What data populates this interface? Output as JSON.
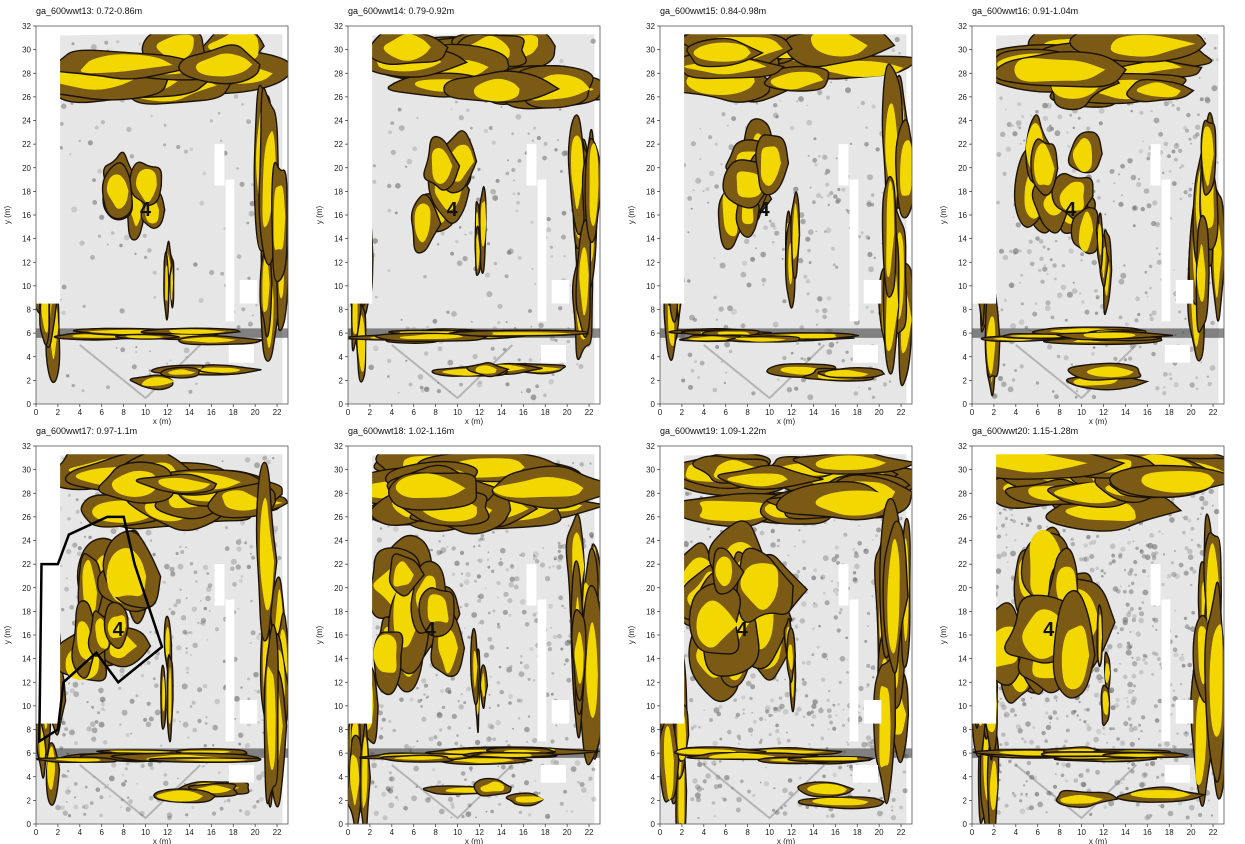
{
  "chart_data": [
    {
      "type": "heatmap",
      "title": "ga_600wwt13: 0.72-0.86m",
      "xlabel": "x (m)",
      "ylabel": "y (m)",
      "xlim": [
        0,
        23
      ],
      "ylim": [
        0,
        32
      ],
      "xticks": [
        "0",
        "2",
        "4",
        "6",
        "8",
        "10",
        "12",
        "14",
        "16",
        "18",
        "20",
        "22"
      ],
      "yticks": [
        "0",
        "2",
        "4",
        "6",
        "8",
        "10",
        "12",
        "14",
        "16",
        "18",
        "20",
        "22",
        "24",
        "26",
        "28",
        "30",
        "32"
      ],
      "feature_label": "4",
      "feature_position": [
        10,
        16.5
      ],
      "outlined_region": false
    },
    {
      "type": "heatmap",
      "title": "ga_600wwt14: 0.79-0.92m",
      "xlabel": "x (m)",
      "ylabel": "y (m)",
      "xlim": [
        0,
        23
      ],
      "ylim": [
        0,
        32
      ],
      "xticks": [
        "0",
        "2",
        "4",
        "6",
        "8",
        "10",
        "12",
        "14",
        "16",
        "18",
        "20",
        "22"
      ],
      "yticks": [
        "0",
        "2",
        "4",
        "6",
        "8",
        "10",
        "12",
        "14",
        "16",
        "18",
        "20",
        "22",
        "24",
        "26",
        "28",
        "30",
        "32"
      ],
      "feature_label": "4",
      "feature_position": [
        9.5,
        16.5
      ],
      "outlined_region": false
    },
    {
      "type": "heatmap",
      "title": "ga_600wwt15: 0.84-0.98m",
      "xlabel": "x (m)",
      "ylabel": "y (m)",
      "xlim": [
        0,
        23
      ],
      "ylim": [
        0,
        32
      ],
      "xticks": [
        "0",
        "2",
        "4",
        "6",
        "8",
        "10",
        "12",
        "14",
        "16",
        "18",
        "20",
        "22"
      ],
      "yticks": [
        "0",
        "2",
        "4",
        "6",
        "8",
        "10",
        "12",
        "14",
        "16",
        "18",
        "20",
        "22",
        "24",
        "26",
        "28",
        "30",
        "32"
      ],
      "feature_label": "4",
      "feature_position": [
        9.5,
        16.5
      ],
      "outlined_region": false
    },
    {
      "type": "heatmap",
      "title": "ga_600wwt16: 0.91-1.04m",
      "xlabel": "x (m)",
      "ylabel": "y (m)",
      "xlim": [
        0,
        23
      ],
      "ylim": [
        0,
        32
      ],
      "xticks": [
        "0",
        "2",
        "4",
        "6",
        "8",
        "10",
        "12",
        "14",
        "16",
        "18",
        "20",
        "22"
      ],
      "yticks": [
        "0",
        "2",
        "4",
        "6",
        "8",
        "10",
        "12",
        "14",
        "16",
        "18",
        "20",
        "22",
        "24",
        "26",
        "28",
        "30",
        "32"
      ],
      "feature_label": "4",
      "feature_position": [
        9,
        16.5
      ],
      "outlined_region": false
    },
    {
      "type": "heatmap",
      "title": "ga_600wwt17: 0.97-1.1m",
      "xlabel": "x (m)",
      "ylabel": "y (m)",
      "xlim": [
        0,
        23
      ],
      "ylim": [
        0,
        32
      ],
      "xticks": [
        "0",
        "2",
        "4",
        "6",
        "8",
        "10",
        "12",
        "14",
        "16",
        "18",
        "20",
        "22"
      ],
      "yticks": [
        "0",
        "2",
        "4",
        "6",
        "8",
        "10",
        "12",
        "14",
        "16",
        "18",
        "20",
        "22",
        "24",
        "26",
        "28",
        "30",
        "32"
      ],
      "feature_label": "4",
      "feature_position": [
        7.5,
        16.5
      ],
      "outlined_region": true
    },
    {
      "type": "heatmap",
      "title": "ga_600wwt18: 1.02-1.16m",
      "xlabel": "x (m)",
      "ylabel": "y (m)",
      "xlim": [
        0,
        23
      ],
      "ylim": [
        0,
        32
      ],
      "xticks": [
        "0",
        "2",
        "4",
        "6",
        "8",
        "10",
        "12",
        "14",
        "16",
        "18",
        "20",
        "22"
      ],
      "yticks": [
        "0",
        "2",
        "4",
        "6",
        "8",
        "10",
        "12",
        "14",
        "16",
        "18",
        "20",
        "22",
        "24",
        "26",
        "28",
        "30",
        "32"
      ],
      "feature_label": "4",
      "feature_position": [
        7.5,
        16.5
      ],
      "outlined_region": false
    },
    {
      "type": "heatmap",
      "title": "ga_600wwt19: 1.09-1.22m",
      "xlabel": "x (m)",
      "ylabel": "y (m)",
      "xlim": [
        0,
        23
      ],
      "ylim": [
        0,
        32
      ],
      "xticks": [
        "0",
        "2",
        "4",
        "6",
        "8",
        "10",
        "12",
        "14",
        "16",
        "18",
        "20",
        "22"
      ],
      "yticks": [
        "0",
        "2",
        "4",
        "6",
        "8",
        "10",
        "12",
        "14",
        "16",
        "18",
        "20",
        "22",
        "24",
        "26",
        "28",
        "30",
        "32"
      ],
      "feature_label": "4",
      "feature_position": [
        7.5,
        16.5
      ],
      "outlined_region": false
    },
    {
      "type": "heatmap",
      "title": "ga_600wwt20: 1.15-1.28m",
      "xlabel": "x (m)",
      "ylabel": "y (m)",
      "xlim": [
        0,
        23
      ],
      "ylim": [
        0,
        32
      ],
      "xticks": [
        "0",
        "2",
        "4",
        "6",
        "8",
        "10",
        "12",
        "14",
        "16",
        "18",
        "20",
        "22"
      ],
      "yticks": [
        "0",
        "2",
        "4",
        "6",
        "8",
        "10",
        "12",
        "14",
        "16",
        "18",
        "20",
        "22",
        "24",
        "26",
        "28",
        "30",
        "32"
      ],
      "feature_label": "4",
      "feature_position": [
        7,
        16.5
      ],
      "outlined_region": false
    }
  ],
  "colors": {
    "high": "#f2d800",
    "mid": "#7a5a14",
    "contour": "#1a1208",
    "low_light": "#e6e6e6",
    "low_dark": "#6a6a6a"
  }
}
